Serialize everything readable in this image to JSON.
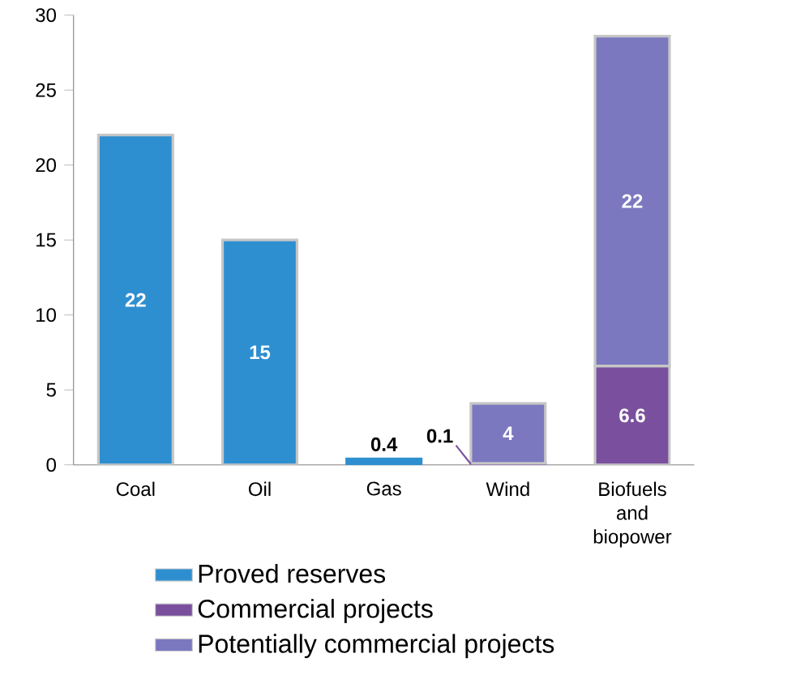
{
  "chart_data": {
    "type": "bar",
    "stacked": true,
    "categories": [
      "Coal",
      "Oil",
      "Gas",
      "Wind",
      "Biofuels and biopower"
    ],
    "series": [
      {
        "name": "Proved reserves",
        "color": "#2e8fd0",
        "values": [
          22,
          15,
          0.4,
          null,
          null
        ]
      },
      {
        "name": "Commercial projects",
        "color": "#7a509e",
        "values": [
          null,
          null,
          null,
          0.1,
          6.6
        ]
      },
      {
        "name": "Potentially commercial projects",
        "color": "#7b78c0",
        "values": [
          null,
          null,
          null,
          4,
          22
        ]
      }
    ],
    "ylim": [
      0,
      30
    ],
    "yticks": [
      0,
      5,
      10,
      15,
      20,
      25,
      30
    ],
    "data_labels": true,
    "legend": "bottom",
    "grid": false
  }
}
